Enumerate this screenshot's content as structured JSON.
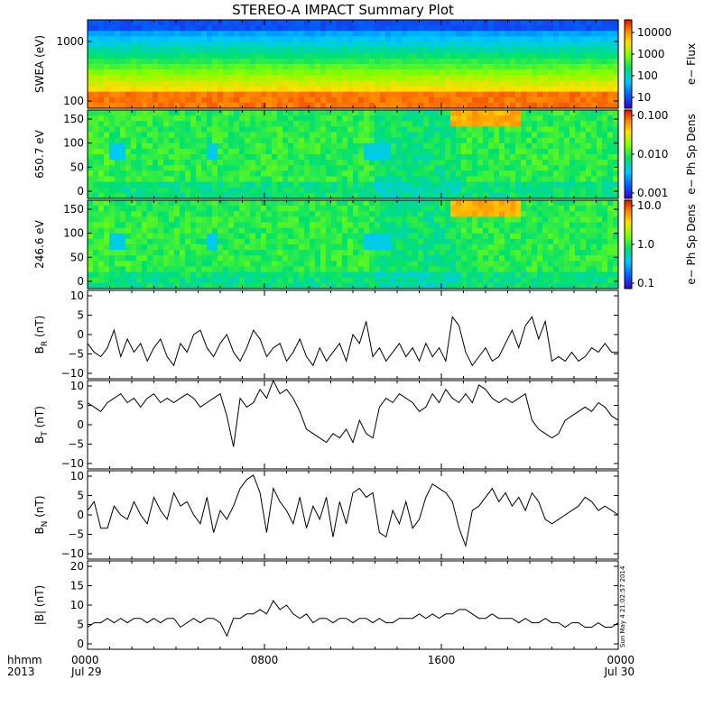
{
  "title": "STEREO-A IMPACT Summary Plot",
  "timestamp_note": "Sun May  4 21:02:57 2014",
  "x_axis": {
    "label_line1": "hhmm",
    "label_line2": "2013",
    "ticks": [
      {
        "value": 0,
        "line1": "0000",
        "line2": "Jul 29"
      },
      {
        "value": 8,
        "line1": "0800",
        "line2": ""
      },
      {
        "value": 16,
        "line1": "1600",
        "line2": ""
      },
      {
        "value": 24,
        "line1": "0000",
        "line2": "Jul 30"
      }
    ],
    "range_hours": [
      0,
      24
    ]
  },
  "panels": [
    {
      "id": "swea",
      "ylabel": "SWEA (eV)",
      "yticks": [
        "1000",
        "100"
      ],
      "cb_label": "e− Flux",
      "cb_ticks": [
        "10000",
        "1000",
        "100",
        "10"
      ]
    },
    {
      "id": "pad650",
      "ylabel": "650.7 eV",
      "yticks": [
        "150",
        "100",
        "50",
        "0"
      ],
      "cb_label": "e− Ph Sp Dens",
      "cb_ticks": [
        "0.100",
        "0.010",
        "0.001"
      ]
    },
    {
      "id": "pad246",
      "ylabel": "246.6 eV",
      "yticks": [
        "150",
        "100",
        "50",
        "0"
      ],
      "cb_label": "e− Ph Sp Dens",
      "cb_ticks": [
        "10.0",
        "1.0",
        "0.1"
      ]
    },
    {
      "id": "br",
      "ylabel": "B",
      "ysub": "R",
      "yunit": " (nT)",
      "yticks": [
        "10",
        "5",
        "0",
        "−5",
        "−10"
      ]
    },
    {
      "id": "bt",
      "ylabel": "B",
      "ysub": "T",
      "yunit": " (nT)",
      "yticks": [
        "10",
        "5",
        "0",
        "−5",
        "−10"
      ]
    },
    {
      "id": "bn",
      "ylabel": "B",
      "ysub": "N",
      "yunit": " (nT)",
      "yticks": [
        "10",
        "5",
        "0",
        "−5",
        "−10"
      ]
    },
    {
      "id": "bmag",
      "ylabel": "|B| (nT)",
      "yticks": [
        "20",
        "15",
        "10",
        "5",
        "0"
      ]
    }
  ],
  "chart_data": [
    {
      "type": "heatmap",
      "panel": "swea",
      "ylabel": "SWEA (eV)",
      "ylog": true,
      "ylim": [
        90,
        2000
      ],
      "colorbar": {
        "label": "e− Flux",
        "log": true,
        "range": [
          5,
          30000
        ]
      },
      "x_hours": [
        0,
        24
      ],
      "description_values": {
        "low_energy_color_level": "orange-red",
        "high_energy_color_level": "blue"
      }
    },
    {
      "type": "heatmap",
      "panel": "pad650",
      "ylabel": "650.7 eV",
      "ylim": [
        0,
        180
      ],
      "colorbar": {
        "label": "e− Ph Sp Dens",
        "log": true,
        "range": [
          0.001,
          0.1
        ]
      }
    },
    {
      "type": "heatmap",
      "panel": "pad246",
      "ylabel": "246.6 eV",
      "ylim": [
        0,
        180
      ],
      "colorbar": {
        "label": "e− Ph Sp Dens",
        "log": true,
        "range": [
          0.1,
          10
        ]
      }
    },
    {
      "type": "line",
      "panel": "br",
      "ylabel": "B_R (nT)",
      "ylim": [
        -10,
        10
      ],
      "x": [
        0,
        0.3,
        0.6,
        0.9,
        1.2,
        1.5,
        1.8,
        2.1,
        2.4,
        2.7,
        3.0,
        3.3,
        3.6,
        3.9,
        4.2,
        4.5,
        4.8,
        5.1,
        5.4,
        5.7,
        6.0,
        6.3,
        6.6,
        6.9,
        7.2,
        7.5,
        7.8,
        8.1,
        8.4,
        8.7,
        9.0,
        9.3,
        9.6,
        9.9,
        10.2,
        10.5,
        10.8,
        11.1,
        11.4,
        11.7,
        12.0,
        12.3,
        12.6,
        12.9,
        13.2,
        13.5,
        13.8,
        14.1,
        14.4,
        14.7,
        15.0,
        15.3,
        15.6,
        15.9,
        16.2,
        16.5,
        16.8,
        17.1,
        17.4,
        17.7,
        18.0,
        18.3,
        18.6,
        18.9,
        19.2,
        19.5,
        19.8,
        20.1,
        20.4,
        20.7,
        21.0,
        21.3,
        21.6,
        21.9,
        22.2,
        22.5,
        22.8,
        23.1,
        23.4,
        23.7,
        24.0
      ],
      "y": [
        -2,
        -4,
        -5,
        -3,
        1,
        -5,
        -1,
        -4,
        -2,
        -6,
        -3,
        -1,
        -5,
        -7,
        -2,
        -4,
        0,
        1,
        -3,
        -5,
        -2,
        0,
        -4,
        -6,
        -3,
        1,
        -1,
        -5,
        -3,
        -2,
        -6,
        -4,
        -1,
        -5,
        -7,
        -3,
        -6,
        -4,
        -2,
        -6,
        0,
        -2,
        3,
        -5,
        -3,
        -6,
        -4,
        -2,
        -5,
        -3,
        -6,
        -2,
        -5,
        -3,
        -6,
        4,
        2,
        -4,
        -7,
        -5,
        -3,
        -6,
        -5,
        -2,
        1,
        -3,
        2,
        4,
        -1,
        3,
        -6,
        -5,
        -6,
        -4,
        -6,
        -5,
        -3,
        -4,
        -2,
        -4,
        -4
      ]
    },
    {
      "type": "line",
      "panel": "bt",
      "ylabel": "B_T (nT)",
      "ylim": [
        -10,
        10
      ],
      "x": [
        0,
        0.3,
        0.6,
        0.9,
        1.2,
        1.5,
        1.8,
        2.1,
        2.4,
        2.7,
        3.0,
        3.3,
        3.6,
        3.9,
        4.2,
        4.5,
        4.8,
        5.1,
        5.4,
        5.7,
        6.0,
        6.3,
        6.6,
        6.9,
        7.2,
        7.5,
        7.8,
        8.1,
        8.4,
        8.7,
        9.0,
        9.3,
        9.6,
        9.9,
        10.2,
        10.5,
        10.8,
        11.1,
        11.4,
        11.7,
        12.0,
        12.3,
        12.6,
        12.9,
        13.2,
        13.5,
        13.8,
        14.1,
        14.4,
        14.7,
        15.0,
        15.3,
        15.6,
        15.9,
        16.2,
        16.5,
        16.8,
        17.1,
        17.4,
        17.7,
        18.0,
        18.3,
        18.6,
        18.9,
        19.2,
        19.5,
        19.8,
        20.1,
        20.4,
        20.7,
        21.0,
        21.3,
        21.6,
        21.9,
        22.2,
        22.5,
        22.8,
        23.1,
        23.4,
        23.7,
        24.0
      ],
      "y": [
        5,
        4,
        3,
        5,
        6,
        7,
        5,
        6,
        4,
        6,
        7,
        5,
        6,
        5,
        6,
        7,
        6,
        4,
        5,
        6,
        7,
        2,
        -5,
        6,
        4,
        5,
        8,
        6,
        10,
        7,
        8,
        6,
        3,
        -1,
        -2,
        -3,
        -4,
        -2,
        -3,
        -1,
        -4,
        1,
        -2,
        -3,
        4,
        6,
        5,
        7,
        6,
        5,
        3,
        4,
        7,
        5,
        8,
        6,
        5,
        7,
        5,
        9,
        8,
        6,
        5,
        6,
        5,
        6,
        7,
        1,
        -1,
        -2,
        -3,
        -2,
        1,
        2,
        3,
        4,
        3,
        5,
        4,
        2,
        1
      ]
    },
    {
      "type": "line",
      "panel": "bn",
      "ylabel": "B_N (nT)",
      "ylim": [
        -10,
        10
      ],
      "x": [
        0,
        0.3,
        0.6,
        0.9,
        1.2,
        1.5,
        1.8,
        2.1,
        2.4,
        2.7,
        3.0,
        3.3,
        3.6,
        3.9,
        4.2,
        4.5,
        4.8,
        5.1,
        5.4,
        5.7,
        6.0,
        6.3,
        6.6,
        6.9,
        7.2,
        7.5,
        7.8,
        8.1,
        8.4,
        8.7,
        9.0,
        9.3,
        9.6,
        9.9,
        10.2,
        10.5,
        10.8,
        11.1,
        11.4,
        11.7,
        12.0,
        12.3,
        12.6,
        12.9,
        13.2,
        13.5,
        13.8,
        14.1,
        14.4,
        14.7,
        15.0,
        15.3,
        15.6,
        15.9,
        16.2,
        16.5,
        16.8,
        17.1,
        17.4,
        17.7,
        18.0,
        18.3,
        18.6,
        18.9,
        19.2,
        19.5,
        19.8,
        20.1,
        20.4,
        20.7,
        21.0,
        21.3,
        21.6,
        21.9,
        22.2,
        22.5,
        22.8,
        23.1,
        23.4,
        23.7,
        24.0
      ],
      "y": [
        1,
        3,
        -3,
        -3,
        2,
        0,
        -1,
        3,
        0,
        -2,
        4,
        1,
        -1,
        5,
        2,
        3,
        0,
        -2,
        4,
        -4,
        1,
        -1,
        2,
        6,
        8,
        9,
        5,
        -4,
        6,
        3,
        1,
        -2,
        4,
        -3,
        2,
        -1,
        4,
        -5,
        3,
        -2,
        5,
        6,
        4,
        5,
        -4,
        -5,
        1,
        -2,
        3,
        -3,
        -1,
        4,
        7,
        6,
        5,
        3,
        -3,
        -7,
        1,
        2,
        4,
        6,
        3,
        5,
        2,
        4,
        1,
        5,
        3,
        -1,
        -2,
        -1,
        0,
        1,
        2,
        4,
        3,
        1,
        2,
        1,
        0
      ]
    },
    {
      "type": "line",
      "panel": "bmag",
      "ylabel": "|B| (nT)",
      "ylim": [
        0,
        20
      ],
      "x": [
        0,
        0.3,
        0.6,
        0.9,
        1.2,
        1.5,
        1.8,
        2.1,
        2.4,
        2.7,
        3.0,
        3.3,
        3.6,
        3.9,
        4.2,
        4.5,
        4.8,
        5.1,
        5.4,
        5.7,
        6.0,
        6.3,
        6.6,
        6.9,
        7.2,
        7.5,
        7.8,
        8.1,
        8.4,
        8.7,
        9.0,
        9.3,
        9.6,
        9.9,
        10.2,
        10.5,
        10.8,
        11.1,
        11.4,
        11.7,
        12.0,
        12.3,
        12.6,
        12.9,
        13.2,
        13.5,
        13.8,
        14.1,
        14.4,
        14.7,
        15.0,
        15.3,
        15.6,
        15.9,
        16.2,
        16.5,
        16.8,
        17.1,
        17.4,
        17.7,
        18.0,
        18.3,
        18.6,
        18.9,
        19.2,
        19.5,
        19.8,
        20.1,
        20.4,
        20.7,
        21.0,
        21.3,
        21.6,
        21.9,
        22.2,
        22.5,
        22.8,
        23.1,
        23.4,
        23.7,
        24.0
      ],
      "y": [
        5,
        6,
        6,
        7,
        6,
        7,
        6,
        7,
        7,
        6,
        7,
        6,
        7,
        7,
        5,
        6,
        7,
        6,
        7,
        7,
        6,
        3,
        7,
        7,
        8,
        8,
        9,
        8,
        11,
        9,
        10,
        8,
        7,
        8,
        6,
        7,
        7,
        6,
        7,
        7,
        6,
        7,
        7,
        6,
        7,
        6,
        6,
        7,
        7,
        7,
        8,
        7,
        8,
        7,
        8,
        8,
        9,
        9,
        8,
        7,
        7,
        8,
        7,
        7,
        7,
        6,
        7,
        6,
        6,
        7,
        6,
        6,
        5,
        6,
        6,
        5,
        5,
        6,
        5,
        5,
        6
      ]
    }
  ]
}
